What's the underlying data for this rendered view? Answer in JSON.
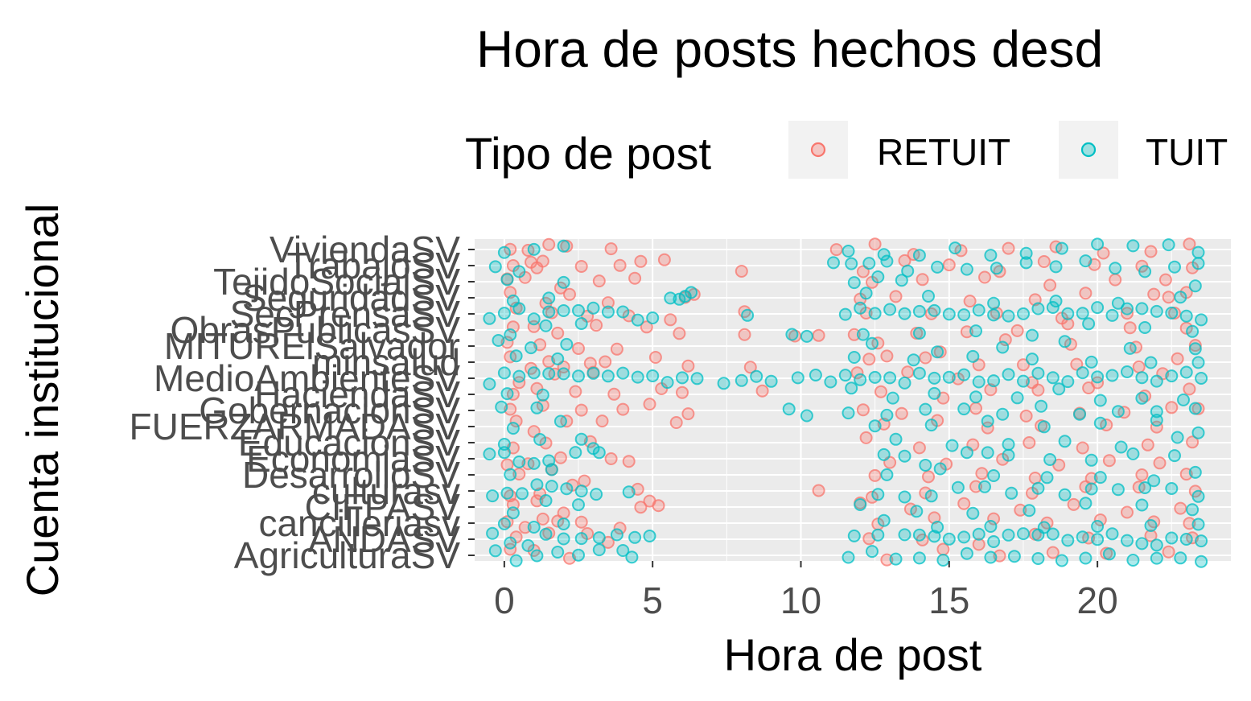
{
  "chart_data": {
    "type": "scatter",
    "title": "Hora de posts hechos desd",
    "xlabel": "Hora de post",
    "ylabel": "Cuenta institucional",
    "xlim": [
      -1,
      24.5
    ],
    "x_ticks": [
      0,
      5,
      10,
      15,
      20
    ],
    "grid": true,
    "legend": {
      "title": "Tipo de post",
      "placement": "top",
      "entries": [
        {
          "name": "RETUIT",
          "color": "#F8766D"
        },
        {
          "name": "TUIT",
          "color": "#00BFC4"
        }
      ]
    },
    "categories": [
      "AgriculturaSV",
      "ANDASV",
      "cancilleriasv",
      "CIFPASV",
      "culturasv",
      "DesarrolloSV",
      "EconomiaSV",
      "EducacionSV",
      "FUERZARMADASV",
      "GobernacionSV",
      "HaciendaSV",
      "MedioAmbienteSV",
      "minsalud",
      "MITURElSalvador",
      "ObrasPublicasSV",
      "SecPrensaSV",
      "SeguridadSV",
      "TejidoSocialSV",
      "TrabajoSV",
      "ViviendaSV"
    ],
    "series": [
      {
        "name": "RETUIT",
        "color": "#F8766D",
        "points": [
          {
            "category": "ViviendaSV",
            "hours": [
              0.2,
              0.8,
              1.5,
              2.1,
              3.6,
              11.2,
              12.5,
              13.8,
              15.4,
              17.0,
              18.6,
              20.2,
              21.8,
              23.1
            ]
          },
          {
            "category": "TrabajoSV",
            "hours": [
              0.3,
              0.9,
              1.1,
              1.3,
              2.6,
              3.9,
              4.6,
              5.4,
              8.0,
              12.1,
              13.5,
              15.0,
              16.7,
              18.2,
              19.9,
              21.5,
              23.2
            ]
          },
          {
            "category": "TejidoSocialSV",
            "hours": [
              0.1,
              0.7,
              1.9,
              3.2,
              4.4,
              12.4,
              14.1,
              16.2,
              18.4,
              20.6,
              22.3
            ]
          },
          {
            "category": "SeguridadSV",
            "hours": [
              0.2,
              1.4,
              2.2,
              3.5,
              6.1,
              6.4,
              12.0,
              13.2,
              15.7,
              17.9,
              19.6,
              21.9,
              22.4,
              23.0
            ]
          },
          {
            "category": "SecPrensaSV",
            "hours": [
              0.4,
              1.6,
              2.8,
              4.2,
              5.6,
              8.1,
              12.2,
              14.4,
              16.6,
              18.8,
              21.0,
              22.6
            ]
          },
          {
            "category": "ObrasPublicasSV",
            "hours": [
              0.3,
              1.0,
              1.8,
              3.1,
              4.8,
              5.9,
              8.1,
              9.8,
              10.6,
              11.8,
              13.9,
              15.6,
              17.3,
              19.0,
              21.1,
              23.0
            ]
          },
          {
            "category": "MITURElSalvador",
            "hours": [
              0.1,
              1.2,
              2.5,
              3.8,
              12.6,
              14.7,
              16.9,
              19.1,
              21.3,
              23.3
            ]
          },
          {
            "category": "minsalud",
            "hours": [
              0.2,
              0.9,
              1.5,
              2.0,
              2.9,
              3.4,
              5.1,
              6.2,
              8.3,
              12.3,
              12.9,
              14.2,
              16.0,
              17.5,
              19.3,
              21.4,
              22.7
            ]
          },
          {
            "category": "MedioAmbienteSV",
            "hours": [
              0.5,
              1.7,
              3.0,
              11.9,
              13.6,
              15.3,
              17.8,
              20.0,
              22.2
            ]
          },
          {
            "category": "HaciendaSV",
            "hours": [
              0.3,
              1.1,
              2.4,
              3.7,
              5.3,
              6.0,
              8.7,
              12.7,
              14.8,
              16.4,
              18.0,
              19.7,
              21.6,
              23.1
            ]
          },
          {
            "category": "GobernacionSV",
            "hours": [
              0.2,
              1.3,
              2.6,
              4.0,
              4.9,
              6.2,
              12.1,
              13.4,
              15.9,
              17.6,
              19.4,
              20.9,
              22.5,
              23.4
            ]
          },
          {
            "category": "FUERZARMADASV",
            "hours": [
              0.4,
              1.0,
              2.1,
              3.3,
              5.8,
              12.8,
              14.6,
              16.3,
              18.1,
              20.3,
              22.0
            ]
          },
          {
            "category": "EducacionSV",
            "hours": [
              0.3,
              1.4,
              2.9,
              12.2,
              14.0,
              15.8,
              17.7,
              19.5,
              21.7,
              23.2
            ]
          },
          {
            "category": "EconomiaSV",
            "hours": [
              0.1,
              0.8,
              1.9,
              3.6,
              4.2,
              13.0,
              14.9,
              16.8,
              18.7,
              20.4,
              22.1
            ]
          },
          {
            "category": "DesarrolloSV",
            "hours": [
              0.5,
              1.6,
              2.7,
              12.5,
              14.3,
              16.1,
              17.9,
              19.8,
              21.5,
              23.0
            ]
          },
          {
            "category": "culturasv",
            "hours": [
              0.2,
              1.2,
              2.3,
              4.5,
              10.6,
              12.4,
              14.2,
              15.9,
              17.8,
              19.6,
              21.4,
              23.3
            ]
          },
          {
            "category": "CIFPASV",
            "hours": [
              0.3,
              1.1,
              2.0,
              4.6,
              4.9,
              5.2,
              12.0,
              13.7,
              15.5,
              17.4,
              19.2,
              21.0,
              22.8
            ]
          },
          {
            "category": "cancilleriasv",
            "hours": [
              0.1,
              0.7,
              1.3,
              1.8,
              2.6,
              3.9,
              12.6,
              14.5,
              16.5,
              18.3,
              20.1,
              21.9,
              23.1
            ]
          },
          {
            "category": "ANDASV",
            "hours": [
              0.4,
              1.5,
              2.8,
              3.5,
              12.3,
              14.1,
              16.0,
              17.9,
              19.7,
              21.8,
              23.2
            ]
          },
          {
            "category": "AgriculturaSV",
            "hours": [
              0.2,
              1.0,
              2.2,
              12.9,
              14.8,
              16.7,
              18.5,
              20.3,
              22.4
            ]
          }
        ]
      },
      {
        "name": "TUIT",
        "color": "#00BFC4",
        "points": [
          {
            "category": "ViviendaSV",
            "hours": [
              0.0,
              1.0,
              2.0,
              11.6,
              12.8,
              14.0,
              15.2,
              16.4,
              17.6,
              18.8,
              20.0,
              21.2,
              22.4,
              23.4
            ]
          },
          {
            "category": "TrabajoSV",
            "hours": [
              -0.3,
              0.5,
              11.1,
              11.7,
              12.3,
              12.9,
              13.6,
              14.6,
              15.6,
              16.6,
              17.6,
              18.6,
              19.6,
              20.6,
              21.6,
              22.6,
              23.4
            ]
          },
          {
            "category": "TejidoSocialSV",
            "hours": [
              0.1,
              2.0,
              11.8,
              12.6,
              13.4,
              23.3
            ]
          },
          {
            "category": "SeguridadSV",
            "hours": [
              0.3,
              1.5,
              5.6,
              5.9,
              6.1,
              6.3,
              12.2,
              14.3,
              16.5,
              18.6,
              20.7,
              22.8
            ]
          },
          {
            "category": "SecPrensaSV",
            "hours": [
              -0.5,
              0.0,
              0.5,
              1.0,
              1.5,
              2.0,
              2.5,
              3.0,
              3.5,
              4.0,
              4.5,
              5.0,
              8.2,
              11.5,
              12.0,
              12.5,
              13.0,
              13.5,
              14.0,
              14.5,
              15.0,
              15.5,
              16.0,
              16.5,
              17.0,
              17.5,
              18.0,
              18.5,
              19.0,
              19.5,
              20.0,
              20.5,
              21.0,
              21.5,
              22.0,
              22.5,
              23.0,
              23.5
            ]
          },
          {
            "category": "ObrasPublicasSV",
            "hours": [
              0.2,
              1.4,
              2.6,
              9.7,
              10.2,
              12.1,
              14.0,
              15.9,
              17.8,
              19.7,
              21.6,
              23.2
            ]
          },
          {
            "category": "MITURElSalvador",
            "hours": [
              -0.2,
              0.9,
              2.1,
              12.4,
              14.6,
              16.8,
              18.9,
              21.1,
              23.3
            ]
          },
          {
            "category": "minsalud",
            "hours": [
              0.4,
              1.8,
              11.8,
              13.8,
              15.8,
              17.8,
              19.8,
              21.8,
              23.4
            ]
          },
          {
            "category": "MedioAmbienteSV",
            "hours": [
              -0.5,
              0.0,
              0.5,
              1.0,
              1.5,
              2.0,
              2.5,
              3.0,
              3.5,
              4.0,
              4.5,
              5.0,
              5.5,
              6.0,
              6.5,
              7.4,
              8.0,
              8.5,
              9.0,
              9.9,
              10.5,
              11.0,
              11.5,
              12.0,
              12.5,
              13.0,
              13.5,
              14.0,
              14.5,
              15.0,
              15.5,
              16.0,
              16.5,
              17.0,
              17.5,
              18.0,
              18.5,
              19.0,
              19.5,
              20.0,
              20.5,
              21.0,
              21.5,
              22.0,
              22.5,
              23.0,
              23.5
            ]
          },
          {
            "category": "HaciendaSV",
            "hours": [
              0.1,
              1.3,
              11.7,
              13.1,
              14.5,
              15.9,
              17.3,
              18.7,
              20.1,
              21.5,
              22.9
            ]
          },
          {
            "category": "GobernacionSV",
            "hours": [
              -0.1,
              1.1,
              9.6,
              10.2,
              11.6,
              12.9,
              14.2,
              15.5,
              16.8,
              18.1,
              19.4,
              20.7,
              22.0,
              23.3
            ]
          },
          {
            "category": "FUERZARMADASV",
            "hours": [
              0.3,
              1.9,
              12.5,
              14.4,
              16.3,
              18.2,
              20.1,
              22.0,
              23.4
            ]
          },
          {
            "category": "EducacionSV",
            "hours": [
              0.0,
              1.2,
              2.6,
              3.0,
              13.2,
              15.1,
              17.0,
              18.9,
              20.8,
              22.7
            ]
          },
          {
            "category": "EconomiaSV",
            "hours": [
              -0.5,
              0.0,
              0.5,
              1.0,
              1.5,
              2.4,
              3.2,
              12.8,
              13.5,
              14.2,
              15.6,
              16.3,
              17.0,
              18.4,
              19.8,
              21.2,
              22.6
            ]
          },
          {
            "category": "DesarrolloSV",
            "hours": [
              0.2,
              1.6,
              12.9,
              14.7,
              16.5,
              18.3,
              20.1,
              21.9,
              23.3
            ]
          },
          {
            "category": "culturasv",
            "hours": [
              -0.4,
              0.1,
              0.6,
              1.1,
              1.6,
              2.1,
              2.6,
              3.1,
              4.2,
              12.6,
              13.5,
              14.4,
              15.3,
              16.2,
              17.1,
              18.0,
              18.9,
              19.8,
              20.7,
              21.6,
              22.5,
              23.4
            ]
          },
          {
            "category": "CIFPASV",
            "hours": [
              0.3,
              1.4,
              2.5,
              12.0,
              13.9,
              15.8,
              17.7,
              19.6,
              21.5,
              23.2
            ]
          },
          {
            "category": "cancilleriasv",
            "hours": [
              0.0,
              1.0,
              2.0,
              12.8,
              14.6,
              16.4,
              18.2,
              20.0,
              21.8,
              23.4
            ]
          },
          {
            "category": "ANDASV",
            "hours": [
              -0.4,
              0.2,
              0.8,
              1.4,
              2.0,
              2.6,
              3.2,
              3.8,
              4.4,
              4.9,
              11.8,
              12.6,
              13.5,
              14.0,
              14.5,
              15.0,
              15.5,
              16.0,
              16.5,
              17.0,
              17.5,
              18.0,
              18.5,
              19.0,
              19.5,
              20.0,
              20.5,
              21.0,
              21.5,
              22.0,
              22.5,
              23.0,
              23.5
            ]
          },
          {
            "category": "AgriculturaSV",
            "hours": [
              -0.3,
              0.4,
              1.1,
              1.8,
              2.5,
              3.2,
              4.0,
              4.3,
              11.6,
              12.4,
              13.2,
              14.0,
              14.8,
              15.6,
              16.4,
              17.2,
              18.0,
              18.8,
              19.6,
              20.4,
              21.2,
              22.0,
              22.8,
              23.5
            ]
          }
        ]
      }
    ]
  }
}
